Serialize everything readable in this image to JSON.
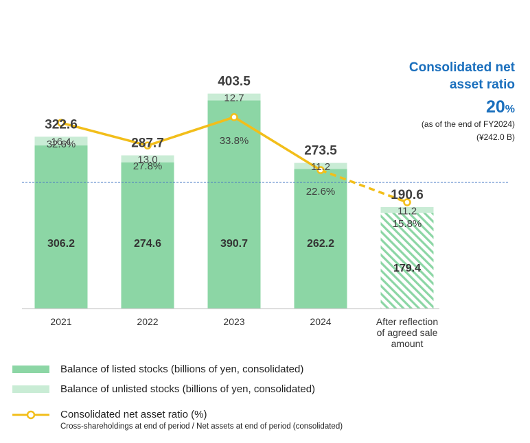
{
  "chart_data": {
    "type": "bar",
    "categories": [
      "2021",
      "2022",
      "2023",
      "2024",
      "After reflection of agreed sale amount"
    ],
    "category_lines": [
      [
        "2021"
      ],
      [
        "2022"
      ],
      [
        "2023"
      ],
      [
        "2024"
      ],
      [
        "After reflection",
        "of agreed sale",
        "amount"
      ]
    ],
    "series": [
      {
        "name": "Balance of listed stocks (billions of yen, consolidated)",
        "values": [
          306.2,
          274.6,
          390.7,
          262.2,
          179.4
        ],
        "color": "#8cd6a5"
      },
      {
        "name": "Balance of unlisted stocks (billions of yen, consolidated)",
        "values": [
          16.4,
          13.0,
          12.7,
          11.2,
          11.2
        ],
        "color": "#c9ecd5"
      }
    ],
    "totals": [
      "322.6",
      "287.7",
      "403.5",
      "273.5",
      "190.6"
    ],
    "listed_labels": [
      "306.2",
      "274.6",
      "390.7",
      "262.2",
      "179.4"
    ],
    "unlisted_labels": [
      "16.4",
      "13.0",
      "12.7",
      "11.2",
      "11.2"
    ],
    "hatched_category": "After reflection of agreed sale amount",
    "ratio_series": {
      "name": "Consolidated net asset ratio (%)",
      "values": [
        32.6,
        27.8,
        33.8,
        22.6,
        15.8
      ],
      "labels": [
        "32.6%",
        "27.8%",
        "33.8%",
        "22.6%",
        "15.8%"
      ],
      "color": "#f2be1a",
      "last_segment": "dashed"
    },
    "reference_line": {
      "value": 20,
      "style": "dashed",
      "color": "#4a7bc4"
    },
    "ylim": [
      0,
      430
    ]
  },
  "ratio_box": {
    "title_line1": "Consolidated net",
    "title_line2": "asset ratio",
    "value": "20",
    "unit": "%",
    "note_line1": "(as of the end of FY2024)",
    "note_line2": "(¥242.0 B)"
  },
  "legend": {
    "listed": "Balance of listed stocks (billions of yen, consolidated)",
    "unlisted": "Balance of unlisted stocks (billions of yen, consolidated)",
    "ratio": "Consolidated net asset ratio (%)",
    "ratio_note": "Cross-shareholdings at end of period / Net assets at end of period (consolidated)"
  }
}
